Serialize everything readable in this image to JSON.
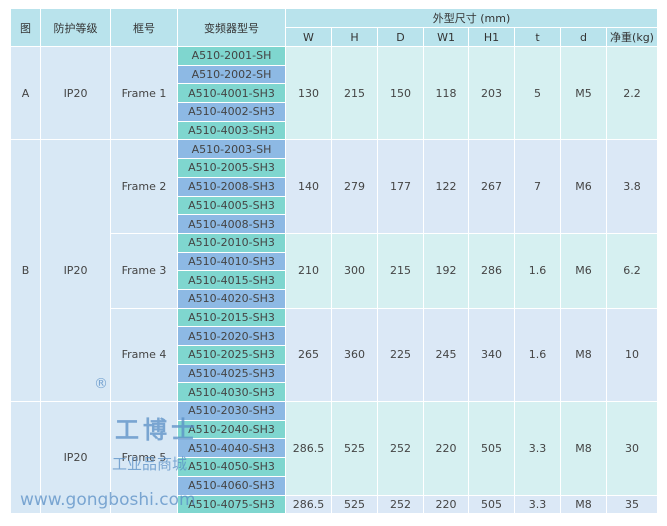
{
  "header": {
    "figure": "图",
    "protection": "防护等级",
    "frame": "框号",
    "model": "变频器型号",
    "dims_group": "外型尺寸 (mm)",
    "dims": [
      "W",
      "H",
      "D",
      "W1",
      "H1",
      "t",
      "d",
      "净重(kg)"
    ]
  },
  "table": {
    "groups": [
      {
        "figure": "A",
        "protection": "IP20",
        "frames": [
          {
            "label": "Frame 1",
            "blocks": [
              {
                "models": [
                  "A510-2001-SH",
                  "A510-2002-SH",
                  "A510-4001-SH3",
                  "A510-4002-SH3",
                  "A510-4003-SH3"
                ],
                "dims": [
                  "130",
                  "215",
                  "150",
                  "118",
                  "203",
                  "5",
                  "M5",
                  "2.2"
                ]
              }
            ]
          }
        ]
      },
      {
        "figure": "B",
        "protection": "IP20",
        "frames": [
          {
            "label": "Frame 2",
            "blocks": [
              {
                "models": [
                  "A510-2003-SH",
                  "A510-2005-SH3",
                  "A510-2008-SH3",
                  "A510-4005-SH3",
                  "A510-4008-SH3"
                ],
                "dims": [
                  "140",
                  "279",
                  "177",
                  "122",
                  "267",
                  "7",
                  "M6",
                  "3.8"
                ]
              }
            ]
          },
          {
            "label": "Frame 3",
            "blocks": [
              {
                "models": [
                  "A510-2010-SH3",
                  "A510-4010-SH3",
                  "A510-4015-SH3",
                  "A510-4020-SH3"
                ],
                "dims": [
                  "210",
                  "300",
                  "215",
                  "192",
                  "286",
                  "1.6",
                  "M6",
                  "6.2"
                ]
              }
            ]
          },
          {
            "label": "Frame 4",
            "blocks": [
              {
                "models": [
                  "A510-2015-SH3",
                  "A510-2020-SH3",
                  "A510-2025-SH3",
                  "A510-4025-SH3",
                  "A510-4030-SH3"
                ],
                "dims": [
                  "265",
                  "360",
                  "225",
                  "245",
                  "340",
                  "1.6",
                  "M8",
                  "10"
                ]
              }
            ]
          }
        ]
      },
      {
        "protection": "IP20",
        "frames": [
          {
            "label": "Frame 5",
            "blocks": [
              {
                "models": [
                  "A510-2030-SH3",
                  "A510-2040-SH3",
                  "A510-4040-SH3",
                  "A510-4050-SH3",
                  "A510-4060-SH3"
                ],
                "dims": [
                  "286.5",
                  "525",
                  "252",
                  "220",
                  "505",
                  "3.3",
                  "M8",
                  "30"
                ]
              },
              {
                "models": [
                  "A510-4075-SH3"
                ],
                "dims": [
                  "286.5",
                  "525",
                  "252",
                  "220",
                  "505",
                  "3.3",
                  "M8",
                  "35"
                ]
              }
            ]
          }
        ]
      }
    ]
  },
  "watermark": {
    "brand": "工博士",
    "mall": "工业品商城",
    "url": "www.gongboshi.com",
    "reg": "®"
  }
}
